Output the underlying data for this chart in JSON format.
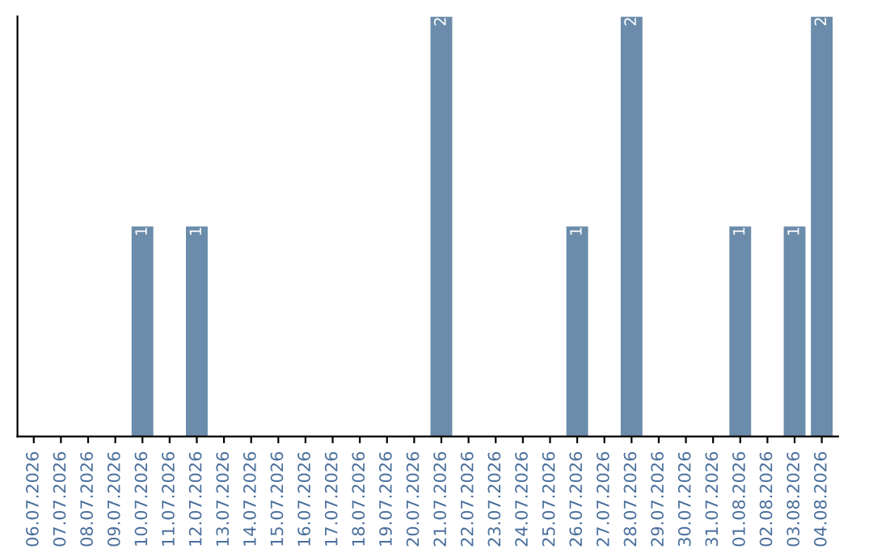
{
  "chart_data": {
    "type": "bar",
    "categories": [
      "06.07.2026",
      "07.07.2026",
      "08.07.2026",
      "09.07.2026",
      "10.07.2026",
      "11.07.2026",
      "12.07.2026",
      "13.07.2026",
      "14.07.2026",
      "15.07.2026",
      "16.07.2026",
      "17.07.2026",
      "18.07.2026",
      "19.07.2026",
      "20.07.2026",
      "21.07.2026",
      "22.07.2026",
      "23.07.2026",
      "24.07.2026",
      "25.07.2026",
      "26.07.2026",
      "27.07.2026",
      "28.07.2026",
      "29.07.2026",
      "30.07.2026",
      "31.07.2026",
      "01.08.2026",
      "02.08.2026",
      "03.08.2026",
      "04.08.2026"
    ],
    "values": [
      0,
      0,
      0,
      0,
      1,
      0,
      1,
      0,
      0,
      0,
      0,
      0,
      0,
      0,
      0,
      2,
      0,
      0,
      0,
      0,
      1,
      0,
      2,
      0,
      0,
      0,
      1,
      0,
      1,
      2
    ],
    "value_labels": [
      null,
      null,
      null,
      null,
      "1",
      null,
      "1",
      null,
      null,
      null,
      null,
      null,
      null,
      null,
      null,
      "2",
      null,
      null,
      null,
      null,
      "1",
      null,
      "2",
      null,
      null,
      null,
      "1",
      null,
      "1",
      "2"
    ],
    "color": "#6b8cab",
    "ylim": [
      0,
      2
    ],
    "tick_labels": "x",
    "grid": false,
    "legend": false
  }
}
